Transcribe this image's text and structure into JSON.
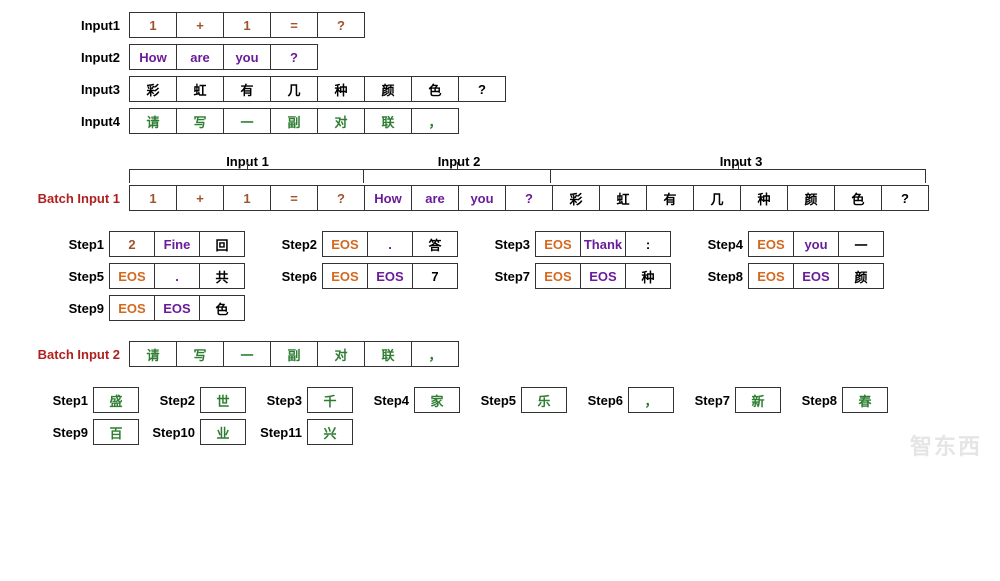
{
  "colors": {
    "brown": "#a0522d",
    "purple": "#6a1b9a",
    "black": "#000000",
    "green": "#2e7d32",
    "orange": "#d2691e",
    "labelRed": "#b02020",
    "border": "#333333",
    "background": "#ffffff"
  },
  "cell": {
    "minWidth": 48,
    "height": 26,
    "fontSize": 13
  },
  "inputs": [
    {
      "label": "Input1",
      "tokens": [
        {
          "t": "1",
          "c": "brown"
        },
        {
          "t": "+",
          "c": "brown"
        },
        {
          "t": "1",
          "c": "brown"
        },
        {
          "t": "=",
          "c": "brown"
        },
        {
          "t": "?",
          "c": "brown"
        }
      ]
    },
    {
      "label": "Input2",
      "tokens": [
        {
          "t": "How",
          "c": "purple"
        },
        {
          "t": "are",
          "c": "purple"
        },
        {
          "t": "you",
          "c": "purple"
        },
        {
          "t": "?",
          "c": "purple"
        }
      ]
    },
    {
      "label": "Input3",
      "tokens": [
        {
          "t": "彩",
          "c": "black"
        },
        {
          "t": "虹",
          "c": "black"
        },
        {
          "t": "有",
          "c": "black"
        },
        {
          "t": "几",
          "c": "black"
        },
        {
          "t": "种",
          "c": "black"
        },
        {
          "t": "颜",
          "c": "black"
        },
        {
          "t": "色",
          "c": "black"
        },
        {
          "t": "?",
          "c": "black"
        }
      ]
    },
    {
      "label": "Input4",
      "tokens": [
        {
          "t": "请",
          "c": "green"
        },
        {
          "t": "写",
          "c": "green"
        },
        {
          "t": "一",
          "c": "green"
        },
        {
          "t": "副",
          "c": "green"
        },
        {
          "t": "对",
          "c": "green"
        },
        {
          "t": "联",
          "c": "green"
        },
        {
          "t": "，",
          "c": "green"
        }
      ]
    }
  ],
  "batchHeader": {
    "groups": [
      {
        "label": "Input 1",
        "span": 5
      },
      {
        "label": "Input 2",
        "span": 4
      },
      {
        "label": "Input 3",
        "span": 8
      }
    ]
  },
  "batch1": {
    "label": "Batch Input 1",
    "tokens": [
      {
        "t": "1",
        "c": "brown"
      },
      {
        "t": "+",
        "c": "brown"
      },
      {
        "t": "1",
        "c": "brown"
      },
      {
        "t": "=",
        "c": "brown"
      },
      {
        "t": "?",
        "c": "brown"
      },
      {
        "t": "How",
        "c": "purple"
      },
      {
        "t": "are",
        "c": "purple"
      },
      {
        "t": "you",
        "c": "purple"
      },
      {
        "t": "?",
        "c": "purple"
      },
      {
        "t": "彩",
        "c": "black"
      },
      {
        "t": "虹",
        "c": "black"
      },
      {
        "t": "有",
        "c": "black"
      },
      {
        "t": "几",
        "c": "black"
      },
      {
        "t": "种",
        "c": "black"
      },
      {
        "t": "颜",
        "c": "black"
      },
      {
        "t": "色",
        "c": "black"
      },
      {
        "t": "?",
        "c": "black"
      }
    ],
    "steps": [
      {
        "label": "Step1",
        "cells": [
          {
            "t": "2",
            "c": "brown"
          },
          {
            "t": "Fine",
            "c": "purple"
          },
          {
            "t": "回",
            "c": "black"
          }
        ]
      },
      {
        "label": "Step2",
        "cells": [
          {
            "t": "EOS",
            "c": "orange"
          },
          {
            "t": ".",
            "c": "purple"
          },
          {
            "t": "答",
            "c": "black"
          }
        ]
      },
      {
        "label": "Step3",
        "cells": [
          {
            "t": "EOS",
            "c": "orange"
          },
          {
            "t": "Thank",
            "c": "purple"
          },
          {
            "t": ":",
            "c": "black"
          }
        ]
      },
      {
        "label": "Step4",
        "cells": [
          {
            "t": "EOS",
            "c": "orange"
          },
          {
            "t": "you",
            "c": "purple"
          },
          {
            "t": "一",
            "c": "black"
          }
        ]
      },
      {
        "label": "Step5",
        "cells": [
          {
            "t": "EOS",
            "c": "orange"
          },
          {
            "t": ".",
            "c": "purple"
          },
          {
            "t": "共",
            "c": "black"
          }
        ]
      },
      {
        "label": "Step6",
        "cells": [
          {
            "t": "EOS",
            "c": "orange"
          },
          {
            "t": "EOS",
            "c": "purple"
          },
          {
            "t": "7",
            "c": "black"
          }
        ]
      },
      {
        "label": "Step7",
        "cells": [
          {
            "t": "EOS",
            "c": "orange"
          },
          {
            "t": "EOS",
            "c": "purple"
          },
          {
            "t": "种",
            "c": "black"
          }
        ]
      },
      {
        "label": "Step8",
        "cells": [
          {
            "t": "EOS",
            "c": "orange"
          },
          {
            "t": "EOS",
            "c": "purple"
          },
          {
            "t": "颜",
            "c": "black"
          }
        ]
      },
      {
        "label": "Step9",
        "cells": [
          {
            "t": "EOS",
            "c": "orange"
          },
          {
            "t": "EOS",
            "c": "purple"
          },
          {
            "t": "色",
            "c": "black"
          }
        ]
      }
    ]
  },
  "batch2": {
    "label": "Batch Input 2",
    "tokens": [
      {
        "t": "请",
        "c": "green"
      },
      {
        "t": "写",
        "c": "green"
      },
      {
        "t": "一",
        "c": "green"
      },
      {
        "t": "副",
        "c": "green"
      },
      {
        "t": "对",
        "c": "green"
      },
      {
        "t": "联",
        "c": "green"
      },
      {
        "t": "，",
        "c": "green"
      }
    ],
    "steps": [
      {
        "label": "Step1",
        "cells": [
          {
            "t": "盛",
            "c": "green"
          }
        ]
      },
      {
        "label": "Step2",
        "cells": [
          {
            "t": "世",
            "c": "green"
          }
        ]
      },
      {
        "label": "Step3",
        "cells": [
          {
            "t": "千",
            "c": "green"
          }
        ]
      },
      {
        "label": "Step4",
        "cells": [
          {
            "t": "家",
            "c": "green"
          }
        ]
      },
      {
        "label": "Step5",
        "cells": [
          {
            "t": "乐",
            "c": "green"
          }
        ]
      },
      {
        "label": "Step6",
        "cells": [
          {
            "t": "，",
            "c": "green"
          }
        ]
      },
      {
        "label": "Step7",
        "cells": [
          {
            "t": "新",
            "c": "green"
          }
        ]
      },
      {
        "label": "Step8",
        "cells": [
          {
            "t": "春",
            "c": "green"
          }
        ]
      },
      {
        "label": "Step9",
        "cells": [
          {
            "t": "百",
            "c": "green"
          }
        ]
      },
      {
        "label": "Step10",
        "cells": [
          {
            "t": "业",
            "c": "green"
          }
        ]
      },
      {
        "label": "Step11",
        "cells": [
          {
            "t": "兴",
            "c": "green"
          }
        ]
      }
    ]
  },
  "watermark": "智东西"
}
